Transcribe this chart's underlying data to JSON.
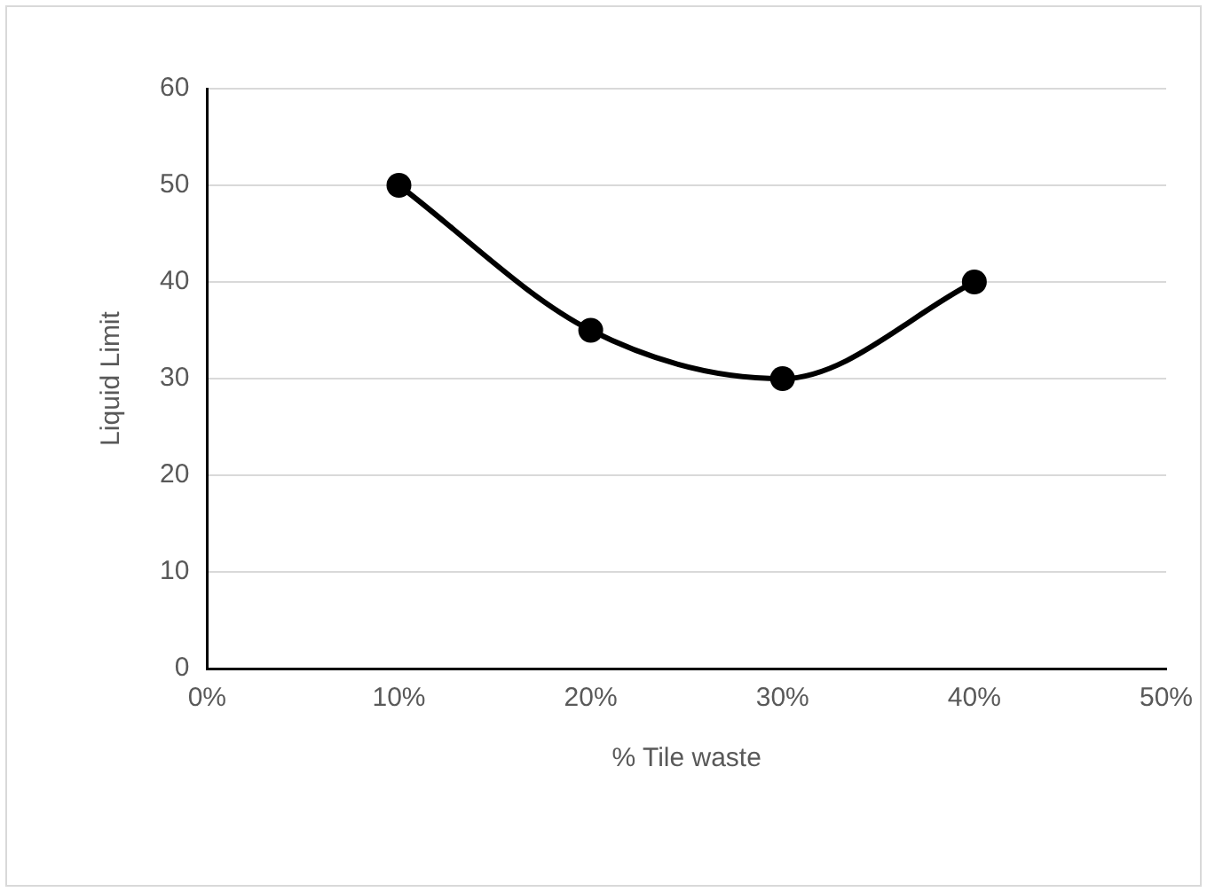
{
  "chart_data": {
    "type": "line",
    "xlabel": "% Tile waste",
    "ylabel": "Liquid Limit",
    "x": [
      10,
      20,
      30,
      40
    ],
    "series": [
      {
        "color": "#000000",
        "values": [
          50,
          35,
          30,
          40
        ]
      }
    ],
    "xlim": [
      0,
      50
    ],
    "xticks": [
      {
        "value": 0,
        "label": "0%"
      },
      {
        "value": 10,
        "label": "10%"
      },
      {
        "value": 20,
        "label": "20%"
      },
      {
        "value": 30,
        "label": "30%"
      },
      {
        "value": 40,
        "label": "40%"
      },
      {
        "value": 50,
        "label": "50%"
      }
    ],
    "ylim": [
      0,
      60
    ],
    "yticks": [
      0,
      10,
      20,
      30,
      40,
      50,
      60
    ],
    "grid": "y",
    "legend": false,
    "marker": "circle",
    "line_style": "solid"
  }
}
